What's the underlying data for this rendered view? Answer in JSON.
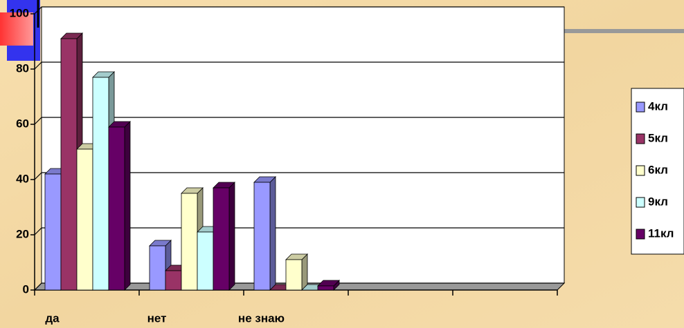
{
  "chart_data": {
    "type": "bar3d",
    "categories": [
      "да",
      "нет",
      "не знаю",
      null,
      null
    ],
    "series": [
      {
        "name": "4кл",
        "color": "#9999ff",
        "values": [
          42,
          16,
          39,
          null,
          null
        ]
      },
      {
        "name": "5кл",
        "color": "#993366",
        "values": [
          91,
          7,
          0,
          null,
          null
        ]
      },
      {
        "name": "6кл",
        "color": "#ffffcc",
        "values": [
          51,
          35,
          11,
          null,
          null
        ]
      },
      {
        "name": "9кл",
        "color": "#ccffff",
        "values": [
          77,
          21,
          0,
          null,
          null
        ]
      },
      {
        "name": "11кл",
        "color": "#660066",
        "values": [
          59,
          37,
          1.5,
          null,
          null
        ]
      }
    ],
    "ylim": [
      0,
      100
    ],
    "yticks": [
      0,
      20,
      40,
      60,
      80,
      100
    ],
    "grid": true,
    "legend": "right"
  }
}
